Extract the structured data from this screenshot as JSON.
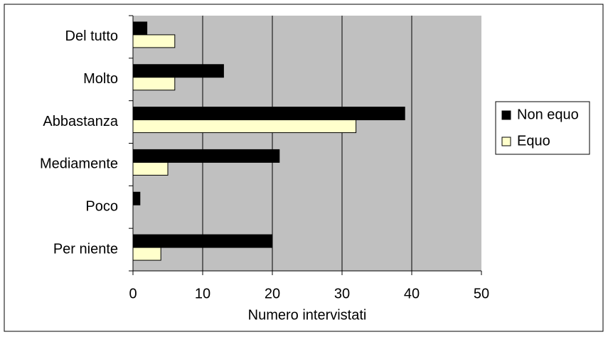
{
  "chart_data": {
    "type": "hbar",
    "categories": [
      "Del tutto",
      "Molto",
      "Abbastanza",
      "Mediamente",
      "Poco",
      "Per niente"
    ],
    "series": [
      {
        "name": "Non equo",
        "color": "#000000",
        "values": [
          2,
          13,
          39,
          21,
          1,
          20
        ]
      },
      {
        "name": "Equo",
        "color": "#ffffcc",
        "values": [
          6,
          6,
          32,
          5,
          0,
          4
        ]
      }
    ],
    "x_label": "Numero intervistati",
    "xlim": [
      0,
      50
    ],
    "xticks": [
      0,
      10,
      20,
      30,
      40,
      50
    ],
    "grid": true,
    "legend": "right",
    "background": "#c0c0c0"
  }
}
